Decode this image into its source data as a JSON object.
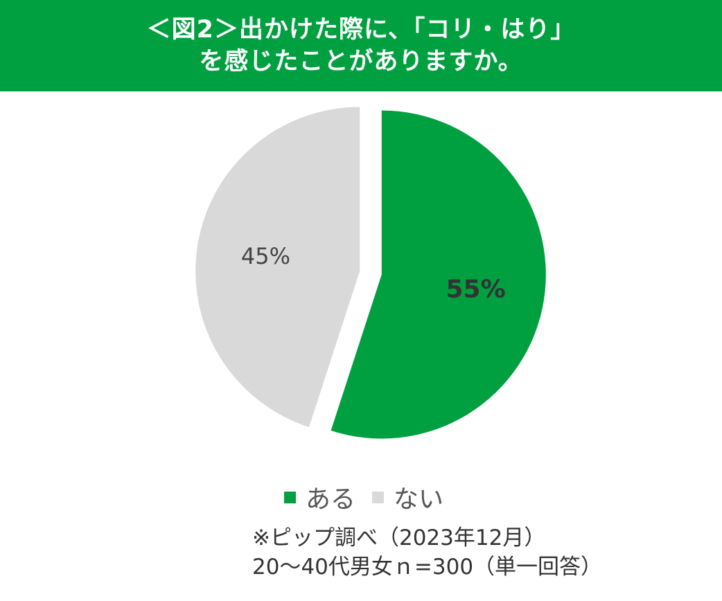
{
  "chart_data": {
    "type": "pie",
    "title_lines": [
      "＜図2＞出かけた際に、「コリ・はり」",
      "を感じたことがありますか。"
    ],
    "categories": [
      "ある",
      "ない"
    ],
    "values": [
      55,
      45
    ],
    "data_labels": [
      "55%",
      "45%"
    ],
    "colors": [
      "#00a040",
      "#d9d9d9"
    ],
    "label_colors": [
      "#333333",
      "#444444"
    ],
    "legend_position": "bottom"
  },
  "footnote": {
    "line1": "※ピップ調べ（2023年12月）",
    "line2": "20〜40代男女ｎ=300（単一回答）"
  }
}
